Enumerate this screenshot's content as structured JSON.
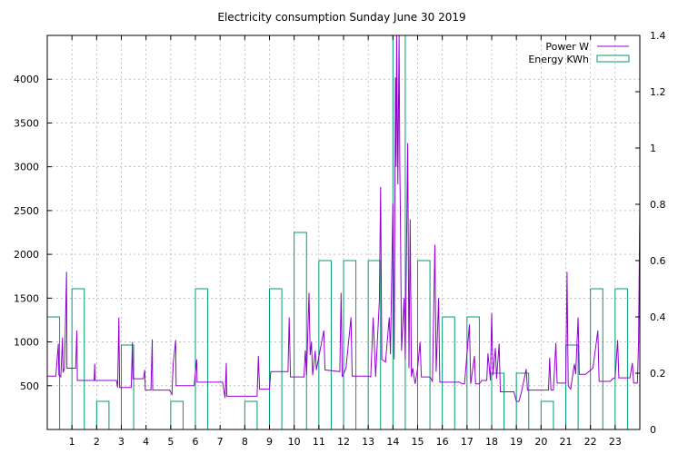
{
  "chart_data": {
    "type": "bar+line",
    "title": "Electricity consumption Sunday June 30 2019",
    "xlabel": "",
    "ylabel": "",
    "xlim": [
      0,
      24
    ],
    "ylim": [
      0,
      4500
    ],
    "y2lim": [
      0,
      1.4
    ],
    "x_ticks": [
      1,
      2,
      3,
      4,
      5,
      6,
      7,
      8,
      9,
      10,
      11,
      12,
      13,
      14,
      15,
      16,
      17,
      18,
      19,
      20,
      21,
      22,
      23
    ],
    "y_ticks": [
      500,
      1000,
      1500,
      2000,
      2500,
      3000,
      3500,
      4000
    ],
    "y2_ticks": [
      0,
      0.2,
      0.4,
      0.6,
      0.8,
      1,
      1.2,
      1.4
    ],
    "grid": true,
    "legend_position": "top-right",
    "series": [
      {
        "name": "Power W",
        "kind": "line",
        "axis": "left",
        "color": "#9400d3",
        "points": [
          [
            0,
            610
          ],
          [
            0.35,
            610
          ],
          [
            0.35,
            620
          ],
          [
            0.45,
            980
          ],
          [
            0.47,
            620
          ],
          [
            0.55,
            600
          ],
          [
            0.62,
            1050
          ],
          [
            0.64,
            650
          ],
          [
            0.7,
            700
          ],
          [
            0.78,
            1800
          ],
          [
            0.8,
            700
          ],
          [
            1.15,
            700
          ],
          [
            1.2,
            1130
          ],
          [
            1.22,
            560
          ],
          [
            1.9,
            560
          ],
          [
            1.92,
            750
          ],
          [
            1.94,
            560
          ],
          [
            2.8,
            560
          ],
          [
            2.85,
            480
          ],
          [
            2.9,
            1280
          ],
          [
            2.93,
            480
          ],
          [
            3.4,
            480
          ],
          [
            3.45,
            1000
          ],
          [
            3.47,
            580
          ],
          [
            3.9,
            580
          ],
          [
            3.95,
            680
          ],
          [
            3.97,
            450
          ],
          [
            4.2,
            450
          ],
          [
            4.25,
            1030
          ],
          [
            4.27,
            450
          ],
          [
            4.95,
            450
          ],
          [
            5.05,
            400
          ],
          [
            5.1,
            740
          ],
          [
            5.2,
            1020
          ],
          [
            5.22,
            500
          ],
          [
            5.95,
            500
          ],
          [
            6.05,
            800
          ],
          [
            6.07,
            540
          ],
          [
            7.1,
            540
          ],
          [
            7.2,
            360
          ],
          [
            7.25,
            760
          ],
          [
            7.27,
            380
          ],
          [
            8.5,
            380
          ],
          [
            8.55,
            840
          ],
          [
            8.6,
            460
          ],
          [
            9.0,
            460
          ],
          [
            9.05,
            660
          ],
          [
            9.75,
            660
          ],
          [
            9.8,
            1280
          ],
          [
            9.85,
            600
          ],
          [
            10.4,
            600
          ],
          [
            10.45,
            900
          ],
          [
            10.5,
            620
          ],
          [
            10.6,
            1560
          ],
          [
            10.65,
            850
          ],
          [
            10.7,
            1000
          ],
          [
            10.75,
            620
          ],
          [
            10.85,
            900
          ],
          [
            10.9,
            680
          ],
          [
            11.2,
            1130
          ],
          [
            11.25,
            680
          ],
          [
            11.85,
            660
          ],
          [
            11.9,
            1560
          ],
          [
            11.95,
            600
          ],
          [
            12.1,
            700
          ],
          [
            12.3,
            1280
          ],
          [
            12.35,
            610
          ],
          [
            13.0,
            610
          ],
          [
            13.1,
            600
          ],
          [
            13.2,
            1280
          ],
          [
            13.3,
            600
          ],
          [
            13.45,
            1470
          ],
          [
            13.5,
            2770
          ],
          [
            13.55,
            800
          ],
          [
            13.7,
            770
          ],
          [
            13.85,
            1280
          ],
          [
            13.9,
            860
          ],
          [
            14.0,
            2580
          ],
          [
            14.05,
            800
          ],
          [
            14.1,
            4020
          ],
          [
            14.13,
            3000
          ],
          [
            14.15,
            4500
          ],
          [
            14.2,
            2800
          ],
          [
            14.25,
            4500
          ],
          [
            14.28,
            3000
          ],
          [
            14.3,
            2500
          ],
          [
            14.35,
            900
          ],
          [
            14.45,
            1500
          ],
          [
            14.5,
            800
          ],
          [
            14.6,
            3270
          ],
          [
            14.65,
            700
          ],
          [
            14.7,
            2400
          ],
          [
            14.75,
            600
          ],
          [
            14.8,
            700
          ],
          [
            14.9,
            520
          ],
          [
            15.0,
            700
          ],
          [
            15.1,
            1000
          ],
          [
            15.15,
            600
          ],
          [
            15.5,
            600
          ],
          [
            15.6,
            550
          ],
          [
            15.7,
            2110
          ],
          [
            15.75,
            660
          ],
          [
            15.85,
            1500
          ],
          [
            15.9,
            540
          ],
          [
            16.6,
            540
          ],
          [
            16.7,
            540
          ],
          [
            16.8,
            520
          ],
          [
            16.9,
            520
          ],
          [
            17.1,
            1200
          ],
          [
            17.15,
            520
          ],
          [
            17.3,
            840
          ],
          [
            17.35,
            520
          ],
          [
            17.5,
            520
          ],
          [
            17.6,
            560
          ],
          [
            17.8,
            560
          ],
          [
            17.85,
            870
          ],
          [
            17.95,
            560
          ],
          [
            18.0,
            1330
          ],
          [
            18.05,
            620
          ],
          [
            18.15,
            930
          ],
          [
            18.2,
            580
          ],
          [
            18.3,
            980
          ],
          [
            18.35,
            430
          ],
          [
            18.9,
            430
          ],
          [
            19.0,
            320
          ],
          [
            19.1,
            320
          ],
          [
            19.2,
            420
          ],
          [
            19.4,
            690
          ],
          [
            19.45,
            450
          ],
          [
            20.3,
            450
          ],
          [
            20.35,
            820
          ],
          [
            20.4,
            450
          ],
          [
            20.5,
            450
          ],
          [
            20.6,
            990
          ],
          [
            20.65,
            530
          ],
          [
            21.0,
            530
          ],
          [
            21.05,
            1800
          ],
          [
            21.1,
            500
          ],
          [
            21.2,
            460
          ],
          [
            21.35,
            750
          ],
          [
            21.4,
            630
          ],
          [
            21.5,
            1280
          ],
          [
            21.55,
            630
          ],
          [
            21.8,
            630
          ],
          [
            22.1,
            700
          ],
          [
            22.3,
            1130
          ],
          [
            22.35,
            550
          ],
          [
            22.8,
            550
          ],
          [
            22.9,
            580
          ],
          [
            23.0,
            590
          ],
          [
            23.1,
            1020
          ],
          [
            23.15,
            590
          ],
          [
            23.6,
            590
          ],
          [
            23.7,
            760
          ],
          [
            23.75,
            530
          ],
          [
            23.9,
            530
          ],
          [
            23.95,
            1000
          ],
          [
            24,
            2580
          ]
        ]
      },
      {
        "name": "Energy KWh",
        "kind": "bar",
        "axis": "right",
        "color": "#009e73",
        "categories": [
          0,
          1,
          2,
          3,
          4,
          5,
          6,
          7,
          8,
          9,
          10,
          11,
          12,
          13,
          14,
          15,
          16,
          17,
          18,
          19,
          20,
          21,
          22,
          23
        ],
        "values": [
          0.4,
          0.5,
          0.1,
          0.3,
          0,
          0.1,
          0.5,
          0,
          0.1,
          0.5,
          0.7,
          0.6,
          0.6,
          0.6,
          1.4,
          0.6,
          0.4,
          0.4,
          0.2,
          0.2,
          0.1,
          0.3,
          0.5,
          0.5
        ]
      }
    ]
  }
}
